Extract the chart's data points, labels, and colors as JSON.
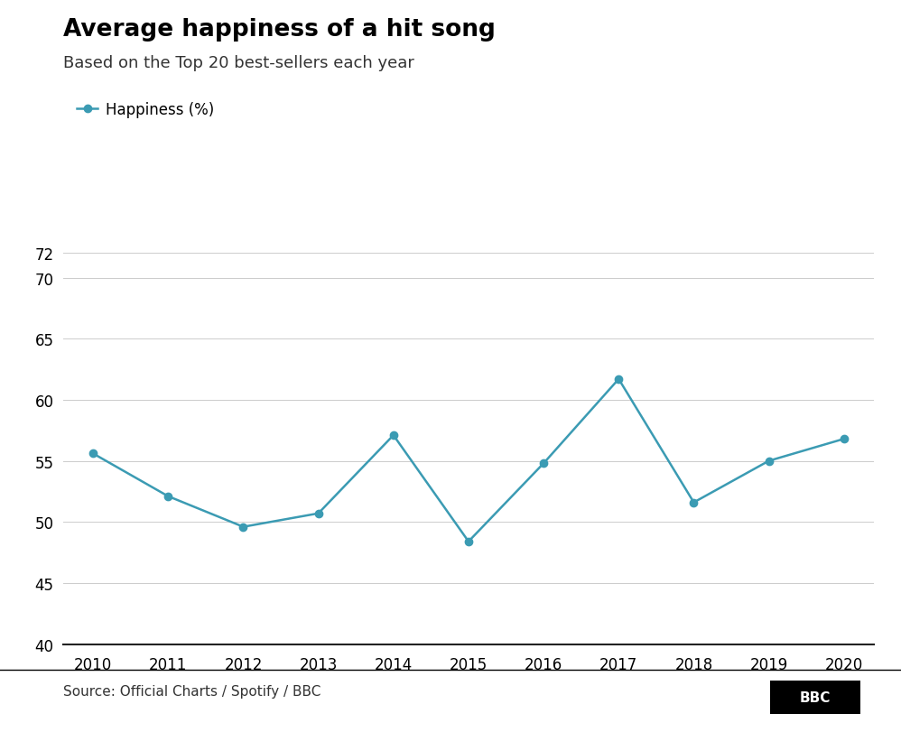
{
  "title": "Average happiness of a hit song",
  "subtitle": "Based on the Top 20 best-sellers each year",
  "source": "Source: Official Charts / Spotify / BBC",
  "bbc_label": "BBC",
  "legend_label": "Happiness (%)",
  "years": [
    2010,
    2011,
    2012,
    2013,
    2014,
    2015,
    2016,
    2017,
    2018,
    2019,
    2020
  ],
  "values": [
    55.6,
    52.1,
    49.6,
    50.7,
    57.1,
    48.4,
    54.8,
    61.7,
    51.6,
    55.0,
    56.8
  ],
  "line_color": "#3B9BB3",
  "marker": "o",
  "marker_size": 6,
  "line_width": 1.8,
  "ylim": [
    40,
    73
  ],
  "yticks": [
    40,
    45,
    50,
    55,
    60,
    65,
    70,
    72
  ],
  "background_color": "#ffffff",
  "title_fontsize": 19,
  "subtitle_fontsize": 13,
  "legend_fontsize": 12,
  "tick_fontsize": 12,
  "source_fontsize": 11
}
